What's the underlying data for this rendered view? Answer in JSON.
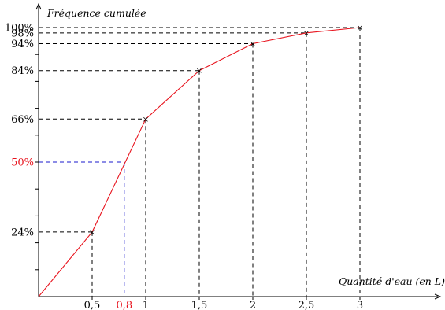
{
  "chart_data": {
    "type": "line",
    "ylabel": "Fréquence cumulée",
    "xlabel": "Quantité d'eau (en L)",
    "xlim": [
      0,
      3
    ],
    "ylim": [
      0,
      100
    ],
    "x_ticks": [
      {
        "value": 0.5,
        "label": "0,5"
      },
      {
        "value": 1,
        "label": "1"
      },
      {
        "value": 1.5,
        "label": "1,5"
      },
      {
        "value": 2,
        "label": "2"
      },
      {
        "value": 2.5,
        "label": "2,5"
      },
      {
        "value": 3,
        "label": "3"
      }
    ],
    "y_tick_marks": [
      10,
      20,
      30,
      40,
      50,
      60,
      70,
      80,
      90
    ],
    "series": [
      {
        "color": "#e8141e",
        "points": [
          {
            "x": 0,
            "y": 0
          },
          {
            "x": 0.5,
            "y": 24,
            "label": "24%"
          },
          {
            "x": 1,
            "y": 66,
            "label": "66%"
          },
          {
            "x": 1.5,
            "y": 84,
            "label": "84%"
          },
          {
            "x": 2,
            "y": 94,
            "label": "94%"
          },
          {
            "x": 2.5,
            "y": 98,
            "label": "98%"
          },
          {
            "x": 3,
            "y": 100,
            "label": "100%"
          }
        ]
      }
    ],
    "annotation": {
      "x": 0.8,
      "y": 50,
      "x_label": "0,8",
      "y_label": "50%",
      "color": "#e8141e",
      "guide_color": "#1a1acc"
    },
    "guide_color": "#000000",
    "marker": "×"
  }
}
